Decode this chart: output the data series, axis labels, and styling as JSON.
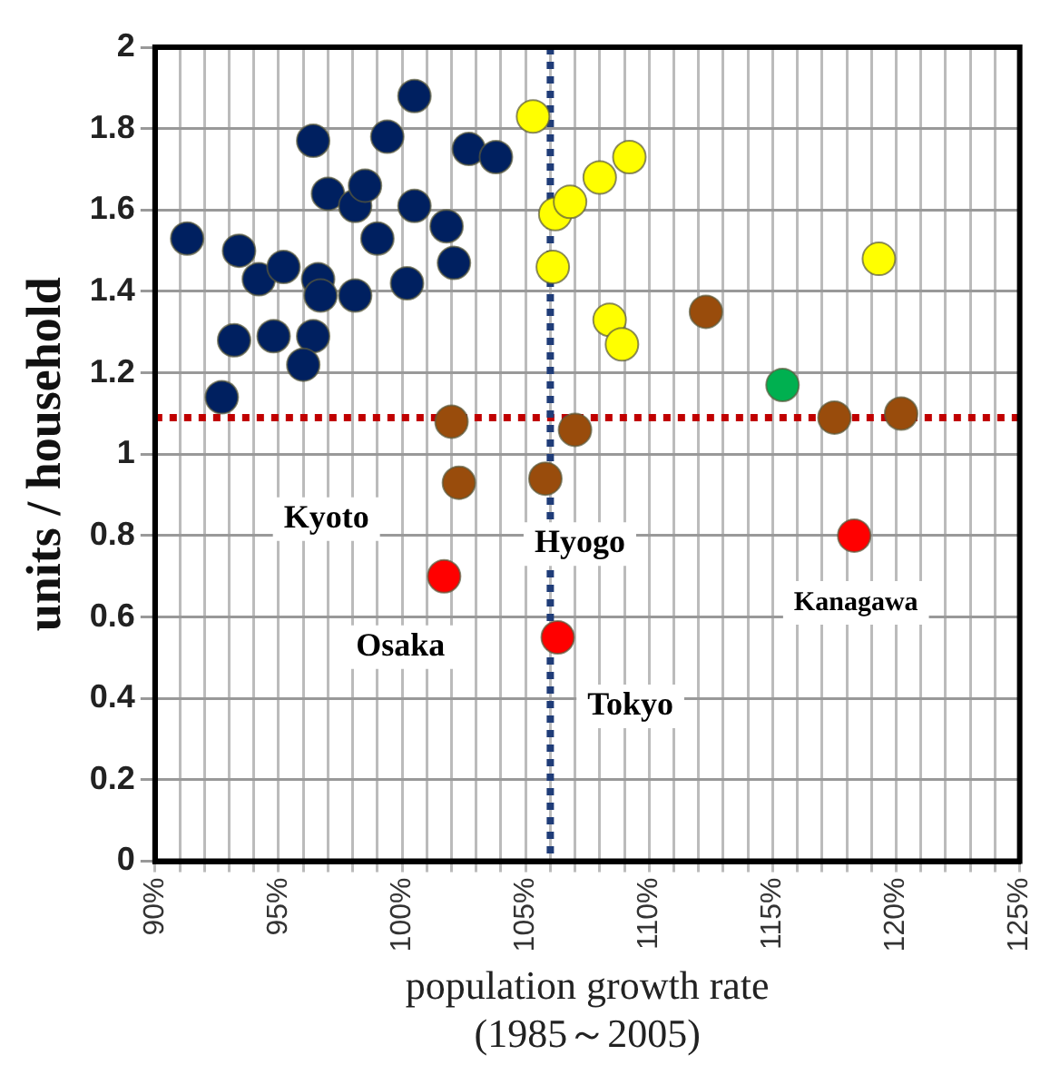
{
  "chart_data": {
    "type": "scatter",
    "xlabel": "population growth rate\n(1985～2005)",
    "ylabel": "units / household",
    "xlim": [
      90,
      125
    ],
    "ylim": [
      0,
      2
    ],
    "xticks": [
      {
        "value": 90,
        "label": "90%"
      },
      {
        "value": 91,
        "label": null
      },
      {
        "value": 92,
        "label": null
      },
      {
        "value": 93,
        "label": null
      },
      {
        "value": 94,
        "label": null
      },
      {
        "value": 95,
        "label": "95%"
      },
      {
        "value": 96,
        "label": null
      },
      {
        "value": 97,
        "label": null
      },
      {
        "value": 98,
        "label": null
      },
      {
        "value": 99,
        "label": null
      },
      {
        "value": 100,
        "label": "100%"
      },
      {
        "value": 101,
        "label": null
      },
      {
        "value": 102,
        "label": null
      },
      {
        "value": 103,
        "label": null
      },
      {
        "value": 104,
        "label": null
      },
      {
        "value": 105,
        "label": "105%"
      },
      {
        "value": 106,
        "label": null
      },
      {
        "value": 107,
        "label": null
      },
      {
        "value": 108,
        "label": null
      },
      {
        "value": 109,
        "label": null
      },
      {
        "value": 110,
        "label": "110%"
      },
      {
        "value": 111,
        "label": null
      },
      {
        "value": 112,
        "label": null
      },
      {
        "value": 113,
        "label": null
      },
      {
        "value": 114,
        "label": null
      },
      {
        "value": 115,
        "label": "115%"
      },
      {
        "value": 116,
        "label": null
      },
      {
        "value": 117,
        "label": null
      },
      {
        "value": 118,
        "label": null
      },
      {
        "value": 119,
        "label": null
      },
      {
        "value": 120,
        "label": "120%"
      },
      {
        "value": 121,
        "label": null
      },
      {
        "value": 122,
        "label": null
      },
      {
        "value": 123,
        "label": null
      },
      {
        "value": 124,
        "label": null
      },
      {
        "value": 125,
        "label": "125%"
      }
    ],
    "yticks": [
      0,
      0.2,
      0.4,
      0.6,
      0.8,
      1,
      1.2,
      1.4,
      1.6,
      1.8,
      2
    ],
    "grid": true,
    "marker": "circle",
    "legend": false,
    "series": [
      {
        "color": "#002060",
        "x": [
          91.3,
          93.4,
          94.2,
          95.2,
          93.2,
          94.8,
          92.7,
          96.4,
          96.0,
          96.6,
          96.7,
          98.1,
          96.4,
          97.0,
          98.1,
          98.5,
          99.0,
          99.4,
          100.5,
          100.5,
          100.2,
          101.8,
          102.1,
          102.7,
          103.8
        ],
        "values": [
          1.53,
          1.5,
          1.43,
          1.46,
          1.28,
          1.29,
          1.14,
          1.29,
          1.22,
          1.43,
          1.39,
          1.39,
          1.77,
          1.64,
          1.61,
          1.66,
          1.53,
          1.78,
          1.88,
          1.61,
          1.42,
          1.56,
          1.47,
          1.75,
          1.73
        ]
      },
      {
        "color": "#ffff00",
        "x": [
          105.3,
          106.2,
          106.8,
          108.0,
          109.2,
          106.1,
          108.4,
          108.9,
          119.3
        ],
        "values": [
          1.83,
          1.59,
          1.62,
          1.68,
          1.73,
          1.46,
          1.33,
          1.27,
          1.48
        ]
      },
      {
        "color": "#994c0c",
        "x": [
          112.3,
          117.5,
          120.2,
          107.0,
          102.0,
          102.3,
          105.8
        ],
        "values": [
          1.35,
          1.09,
          1.1,
          1.06,
          1.08,
          0.93,
          0.94
        ]
      },
      {
        "color": "#00b050",
        "x": [
          115.4
        ],
        "values": [
          1.17
        ]
      },
      {
        "color": "#ff0000",
        "x": [
          101.7,
          106.3,
          118.3
        ],
        "values": [
          0.7,
          0.55,
          0.8
        ]
      }
    ],
    "ref_lines": [
      {
        "axis": "y",
        "value": 1.09,
        "color": "#c00000",
        "line_style": "dotted"
      },
      {
        "axis": "x",
        "value": 106,
        "color": "#1f3c78",
        "line_style": "dotted"
      }
    ],
    "annotations": [
      {
        "text": "Kyoto",
        "x": 102.3,
        "y": 0.93
      },
      {
        "text": "Hyogo",
        "x": 105.8,
        "y": 0.94
      },
      {
        "text": "Osaka",
        "x": 101.7,
        "y": 0.7
      },
      {
        "text": "Tokyo",
        "x": 106.3,
        "y": 0.55
      },
      {
        "text": "Kanagawa",
        "x": 118.3,
        "y": 0.8
      }
    ]
  }
}
